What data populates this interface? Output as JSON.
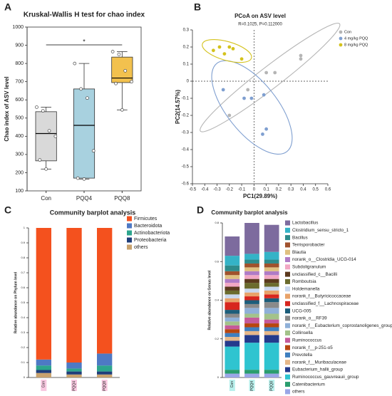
{
  "chart_data": [
    {
      "type": "box",
      "panel": "A",
      "title": "Kruskal-Wallis H test for chao index",
      "y_label": "Chao index of ASV level",
      "categories": [
        "Con",
        "PQQ4",
        "PQQ8"
      ],
      "colors": [
        "#d9d9d9",
        "#a8d1df",
        "#f2c14e"
      ],
      "boxes": [
        {
          "min": 220,
          "q1": 265,
          "median": 415,
          "q3": 535,
          "max": 560,
          "points": [
            560,
            540,
            430,
            400,
            270,
            220
          ]
        },
        {
          "min": 165,
          "q1": 170,
          "median": 460,
          "q3": 660,
          "max": 800,
          "points": [
            800,
            660,
            610,
            320,
            170,
            165
          ]
        },
        {
          "min": 545,
          "q1": 695,
          "median": 720,
          "q3": 835,
          "max": 865,
          "points": [
            865,
            850,
            760,
            700,
            690,
            545
          ]
        }
      ],
      "ylim": [
        100,
        1000
      ],
      "yticks": [
        100,
        200,
        300,
        400,
        500,
        600,
        700,
        800,
        900,
        1000
      ],
      "significance": "*"
    },
    {
      "type": "scatter",
      "panel": "B",
      "title": "PCoA on ASV level",
      "subtitle": "R=0.1025, P=0.112000",
      "x_label": "PC1(29.89%)",
      "y_label": "PC2(14.57%)",
      "legend": "upper right",
      "series": [
        {
          "name": "Con",
          "color": "#b5b5b5",
          "x": [
            0.38,
            0.38,
            0.17,
            0.1,
            -0.05,
            -0.2
          ],
          "y": [
            0.13,
            0.15,
            0.05,
            0.05,
            -0.05,
            -0.2
          ]
        },
        {
          "name": "4 mg/kg PQQ",
          "color": "#7f9fd0",
          "x": [
            -0.25,
            -0.02,
            0.08,
            0.1,
            0.07,
            -0.08
          ],
          "y": [
            -0.05,
            -0.1,
            -0.08,
            -0.28,
            -0.31,
            -0.1
          ]
        },
        {
          "name": "8 mg/kg PQQ",
          "color": "#d4c21c",
          "x": [
            -0.33,
            -0.28,
            -0.2,
            -0.17,
            -0.24,
            -0.1
          ],
          "y": [
            0.18,
            0.2,
            0.2,
            0.19,
            0.16,
            0.13
          ]
        }
      ],
      "xlim": [
        -0.5,
        0.6
      ],
      "xticks": [
        -0.5,
        -0.4,
        -0.3,
        -0.2,
        -0.1,
        0,
        0.1,
        0.2,
        0.3,
        0.4,
        0.5,
        0.6
      ],
      "ylim": [
        -0.6,
        0.3
      ],
      "yticks": [
        -0.6,
        -0.5,
        -0.4,
        -0.3,
        -0.2,
        -0.1,
        0,
        0.1,
        0.2,
        0.3
      ]
    },
    {
      "type": "stacked_bar",
      "panel": "C",
      "title": "Community barplot analysis",
      "y_label": "Relative abundance on Phylum level",
      "categories": [
        "Con",
        "PQQ4",
        "PQQ8"
      ],
      "series": [
        {
          "name": "Firmicutes",
          "color": "#f4511e",
          "values": [
            0.88,
            0.9,
            0.84
          ]
        },
        {
          "name": "Bacteroidota",
          "color": "#4e79c4",
          "values": [
            0.04,
            0.04,
            0.08
          ]
        },
        {
          "name": "Actinobacteriota",
          "color": "#2ca58d",
          "values": [
            0.03,
            0.02,
            0.04
          ]
        },
        {
          "name": "Proteobacteria",
          "color": "#1f3d7a",
          "values": [
            0.02,
            0.02,
            0.02
          ]
        },
        {
          "name": "others",
          "color": "#c8a26e",
          "values": [
            0.03,
            0.02,
            0.02
          ]
        }
      ],
      "ylim": [
        0,
        1
      ],
      "yticks": [
        0,
        0.1,
        0.2,
        0.3,
        0.4,
        0.5,
        0.6,
        0.7,
        0.8,
        0.9,
        1
      ]
    },
    {
      "type": "stacked_bar",
      "panel": "D",
      "title": "Community barplot analysis",
      "y_label": "Relative abundance on Genus level",
      "categories": [
        "Con",
        "PQQ4",
        "PQQ8"
      ],
      "series": [
        {
          "name": "Lactobacillus",
          "color": "#7d6b9e",
          "values": [
            0.1,
            0.16,
            0.14
          ]
        },
        {
          "name": "Clostridium_sensu_stricto_1",
          "color": "#34b3c7",
          "values": [
            0.05,
            0.03,
            0.04
          ]
        },
        {
          "name": "Bacillus",
          "color": "#2e8b8b",
          "values": [
            0.03,
            0.02,
            0.02
          ]
        },
        {
          "name": "Terrisporobacter",
          "color": "#a0522d",
          "values": [
            0.02,
            0.02,
            0.02
          ]
        },
        {
          "name": "Blautia",
          "color": "#e0c080",
          "values": [
            0.02,
            0.02,
            0.02
          ]
        },
        {
          "name": "norank_o__Clostridia_UCG-014",
          "color": "#b07cc6",
          "values": [
            0.02,
            0.02,
            0.02
          ]
        },
        {
          "name": "Subdoligranulum",
          "color": "#f2a7c4",
          "values": [
            0.02,
            0.02,
            0.02
          ]
        },
        {
          "name": "unclassified_c__Bacilli",
          "color": "#5b3a1e",
          "values": [
            0.02,
            0.02,
            0.02
          ]
        },
        {
          "name": "Romboutsia",
          "color": "#6b6b2e",
          "values": [
            0.02,
            0.03,
            0.02
          ]
        },
        {
          "name": "Holdemanella",
          "color": "#c9d7ee",
          "values": [
            0.02,
            0.02,
            0.02
          ]
        },
        {
          "name": "norank_f__Butyricicoccaceae",
          "color": "#e8a26a",
          "values": [
            0.02,
            0.02,
            0.02
          ]
        },
        {
          "name": "unclassified_f__Lachnospiraceae",
          "color": "#d7261e",
          "values": [
            0.04,
            0.02,
            0.02
          ]
        },
        {
          "name": "UCG-005",
          "color": "#1c5d7a",
          "values": [
            0.02,
            0.02,
            0.02
          ]
        },
        {
          "name": "norank_o__RF39",
          "color": "#8a8a8a",
          "values": [
            0.02,
            0.02,
            0.03
          ]
        },
        {
          "name": "norank_f__Eubacterium_coprostanoligenes_group",
          "color": "#8fb0d8",
          "values": [
            0.02,
            0.03,
            0.03
          ]
        },
        {
          "name": "Collinsella",
          "color": "#a3c28a",
          "values": [
            0.02,
            0.02,
            0.03
          ]
        },
        {
          "name": "Ruminococcus",
          "color": "#c55a9a",
          "values": [
            0.02,
            0.03,
            0.02
          ]
        },
        {
          "name": "norank_f__p-251-o5",
          "color": "#b8460f",
          "values": [
            0.02,
            0.02,
            0.02
          ]
        },
        {
          "name": "Prevotella",
          "color": "#3f7fbf",
          "values": [
            0.02,
            0.02,
            0.02
          ]
        },
        {
          "name": "norank_f__Muribaculaceae",
          "color": "#e6b88a",
          "values": [
            0.02,
            0.02,
            0.02
          ]
        },
        {
          "name": "Eubacterium_hallii_group",
          "color": "#243a8c",
          "values": [
            0.03,
            0.04,
            0.04
          ]
        },
        {
          "name": "Ruminococcus_gauvreauii_group",
          "color": "#2fc4d0",
          "values": [
            0.12,
            0.14,
            0.14
          ]
        },
        {
          "name": "Catenibacterium",
          "color": "#2a9d6e",
          "values": [
            0.02,
            0.02,
            0.02
          ]
        },
        {
          "name": "others",
          "color": "#9aa6e6",
          "values": [
            0.02,
            0.02,
            0.02
          ]
        }
      ],
      "ylim": [
        0,
        0.8
      ],
      "yticks": [
        0,
        0.2,
        0.4,
        0.6,
        0.8
      ]
    }
  ]
}
